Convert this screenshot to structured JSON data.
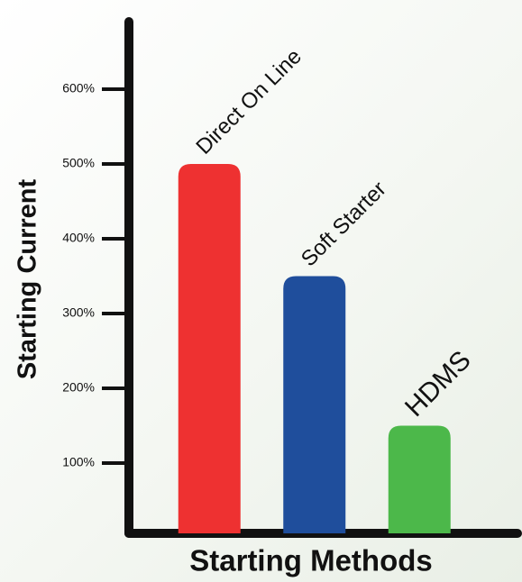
{
  "chart_data": {
    "type": "bar",
    "y_label": "Starting Current",
    "x_label": "Starting Methods",
    "categories": [
      "Direct On Line",
      "Soft Starter",
      "HDMS"
    ],
    "values": [
      500,
      350,
      150
    ],
    "colors": [
      "#ee3131",
      "#1f4e9c",
      "#4cb84a"
    ],
    "ylim": [
      0,
      700
    ],
    "yticks": [
      {
        "value": 100,
        "label": "100%"
      },
      {
        "value": 200,
        "label": "200%"
      },
      {
        "value": 300,
        "label": "300%"
      },
      {
        "value": 400,
        "label": "400%"
      },
      {
        "value": 500,
        "label": "500%"
      },
      {
        "value": 600,
        "label": "600%"
      }
    ]
  }
}
